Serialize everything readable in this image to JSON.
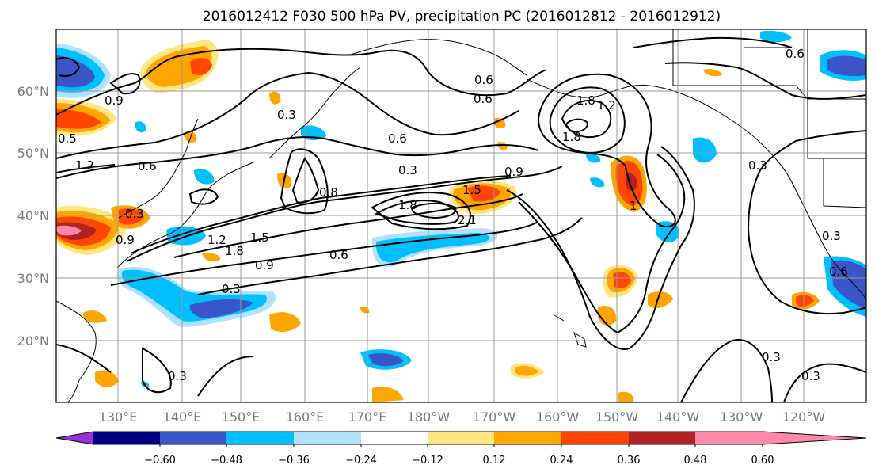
{
  "title": "2016012412 F030 500 hPa PV, precipitation PC (2016012812 - 2016012912)",
  "lat_labels": [
    "60°N",
    "50°N",
    "40°N",
    "30°N",
    "20°N"
  ],
  "lon_labels": [
    "130°E",
    "140°E",
    "150°E",
    "160°E",
    "170°E",
    "180°W",
    "170°W",
    "160°W",
    "150°W",
    "140°W",
    "130°W",
    "120°W"
  ],
  "contour_labels": [
    "0.9",
    "1.2",
    "0.6",
    "0.3",
    "0.9",
    "1.2",
    "1.5",
    "1.8",
    "0.9",
    "0.3",
    "0.6",
    "0.6",
    "0.3",
    "0.8",
    "1.8",
    "2.1",
    "1.5",
    "0.9",
    "0.6",
    "0.6",
    "1.8",
    "1.8",
    "1.2",
    "1",
    "0.3",
    "0.6",
    "0.3",
    "0.3",
    "0.3",
    "0.6",
    "0.3",
    "0.3",
    "0.5"
  ],
  "colorbar": {
    "ticks": [
      "−0.60",
      "−0.48",
      "−0.36",
      "−0.24",
      "−0.12",
      "0.12",
      "0.24",
      "0.36",
      "0.48",
      "0.60"
    ],
    "colors": [
      "#9b30d0",
      "#000080",
      "#3a55c8",
      "#00bfff",
      "#b0e2ff",
      "#ffffff",
      "#ffe680",
      "#ffa500",
      "#ff4500",
      "#b22222",
      "#ff88aa"
    ]
  },
  "shading_colors": {
    "neg_strong": "#3a55c8",
    "neg_mid": "#00bfff",
    "neg_weak": "#b0e2ff",
    "pos_weak": "#ffe680",
    "pos_mid": "#ffa500",
    "pos_strong": "#ff4500",
    "pos_vstrong": "#b22222",
    "pos_max": "#ff88aa"
  }
}
